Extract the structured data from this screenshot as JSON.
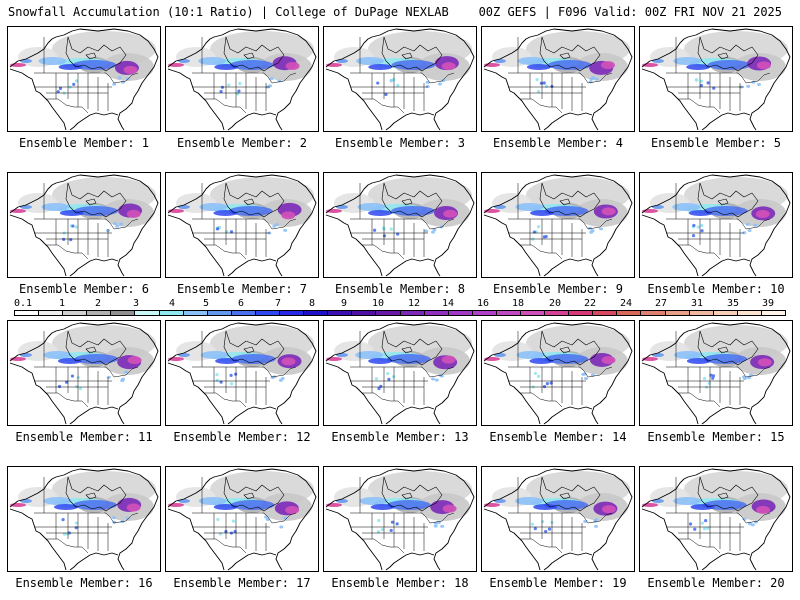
{
  "header": {
    "left": "Snowfall Accumulation (10:1 Ratio) | College of DuPage NEXLAB",
    "right": "00Z GEFS | F096 Valid: 00Z FRI NOV 21 2025"
  },
  "members": [
    "Ensemble Member: 1",
    "Ensemble Member: 2",
    "Ensemble Member: 3",
    "Ensemble Member: 4",
    "Ensemble Member: 5",
    "Ensemble Member: 6",
    "Ensemble Member: 7",
    "Ensemble Member: 8",
    "Ensemble Member: 9",
    "Ensemble Member: 10",
    "Ensemble Member: 11",
    "Ensemble Member: 12",
    "Ensemble Member: 13",
    "Ensemble Member: 14",
    "Ensemble Member: 15",
    "Ensemble Member: 16",
    "Ensemble Member: 17",
    "Ensemble Member: 18",
    "Ensemble Member: 19",
    "Ensemble Member: 20"
  ],
  "colorbar": {
    "labels": [
      "0.1",
      "1",
      "2",
      "3",
      "4",
      "5",
      "6",
      "7",
      "8",
      "9",
      "10",
      "12",
      "14",
      "16",
      "18",
      "20",
      "22",
      "24",
      "27",
      "31",
      "35",
      "39"
    ],
    "colors": [
      "#ffffff",
      "#eeeeee",
      "#d0d0d0",
      "#b0b0b0",
      "#909090",
      "#c8f8f8",
      "#90e8f0",
      "#8cc0f8",
      "#6498f0",
      "#4c70f0",
      "#3048f0",
      "#2828e8",
      "#2010c8",
      "#3c10b0",
      "#5010a8",
      "#6818a8",
      "#7c28b8",
      "#9030c0",
      "#a038c8",
      "#b040c8",
      "#c048c0",
      "#d050b8",
      "#d84098",
      "#d83878",
      "#d84860",
      "#d86858",
      "#e08070",
      "#e8a088",
      "#f0b8a0",
      "#f8d0b8",
      "#fce4d0",
      "#fff4e8"
    ]
  }
}
